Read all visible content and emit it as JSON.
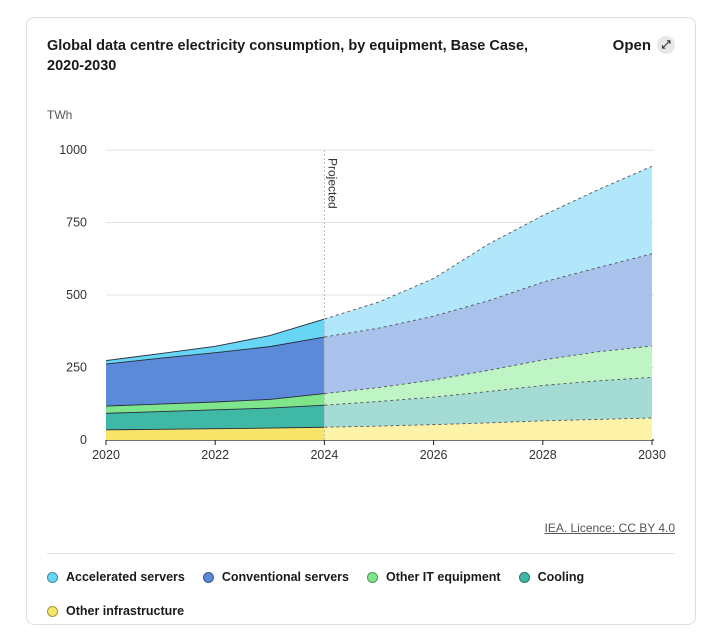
{
  "header": {
    "title": "Global data centre electricity consumption, by equipment, Base Case, 2020-2030",
    "open_label": "Open",
    "open_icon": "expand-icon"
  },
  "footer": {
    "licence": "IEA. Licence: CC BY 4.0"
  },
  "chart_data": {
    "type": "area",
    "stacked": true,
    "title": "Global data centre electricity consumption, by equipment, Base Case, 2020-2030",
    "ylabel": "TWh",
    "ylim": [
      0,
      1000
    ],
    "yticks": [
      "0",
      "250",
      "500",
      "750",
      "1000"
    ],
    "xticks": [
      "2020",
      "2022",
      "2024",
      "2026",
      "2028",
      "2030"
    ],
    "x": [
      2020,
      2021,
      2022,
      2023,
      2024,
      2025,
      2026,
      2027,
      2028,
      2029,
      2030
    ],
    "annotation": "Projected",
    "projected_from": 2024,
    "series": [
      {
        "name": "Other infrastructure",
        "color": "#f7e56a",
        "proj_color": "#fdf3a8",
        "values": [
          35,
          37,
          39,
          41,
          44,
          48,
          53,
          59,
          66,
          71,
          76
        ]
      },
      {
        "name": "Cooling",
        "color": "#3fb8a6",
        "proj_color": "#a4dbd5",
        "values": [
          57,
          61,
          65,
          69,
          76,
          85,
          95,
          108,
          122,
          133,
          140
        ]
      },
      {
        "name": "Other IT equipment",
        "color": "#7fe58c",
        "proj_color": "#bff4c4",
        "values": [
          25,
          26,
          27,
          30,
          40,
          48,
          59,
          73,
          88,
          100,
          108
        ]
      },
      {
        "name": "Conventional servers",
        "color": "#5b8ad8",
        "proj_color": "#a9c2ec",
        "values": [
          145,
          158,
          170,
          182,
          195,
          205,
          220,
          240,
          268,
          290,
          318
        ]
      },
      {
        "name": "Accelerated servers",
        "color": "#67d6f4",
        "proj_color": "#b2e7fb",
        "values": [
          12,
          16,
          22,
          38,
          62,
          90,
          130,
          195,
          230,
          268,
          302
        ]
      }
    ],
    "legend_order": [
      "Accelerated servers",
      "Conventional servers",
      "Other IT equipment",
      "Cooling",
      "Other infrastructure"
    ],
    "legend_position": "bottom",
    "grid": true
  }
}
